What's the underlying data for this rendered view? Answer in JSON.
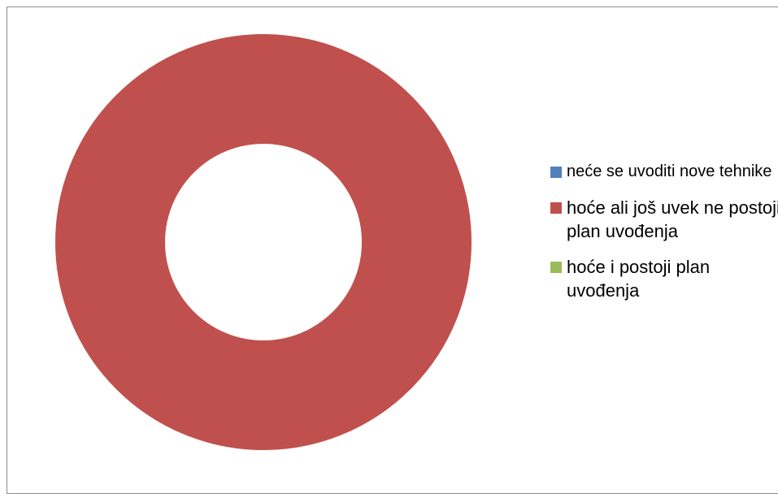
{
  "chart_data": {
    "type": "pie",
    "style": "doughnut",
    "title": "",
    "categories": [
      "neće se uvoditi nove tehnike",
      "hoće ali još uvek ne postoji plan uvođenja",
      "hoće i postoji plan uvođenja"
    ],
    "values": [
      0,
      1,
      0
    ],
    "colors": [
      "#4F81BD",
      "#C0504D",
      "#9BBB59"
    ],
    "legend_position": "right"
  },
  "legend": {
    "items": [
      {
        "label": "neće se uvoditi nove tehnike",
        "color": "#4F81BD"
      },
      {
        "label": "hoće ali još uvek ne postoji plan uvođenja",
        "color": "#C0504D"
      },
      {
        "label": "hoće i postoji plan uvođenja",
        "color": "#9BBB59"
      }
    ]
  }
}
